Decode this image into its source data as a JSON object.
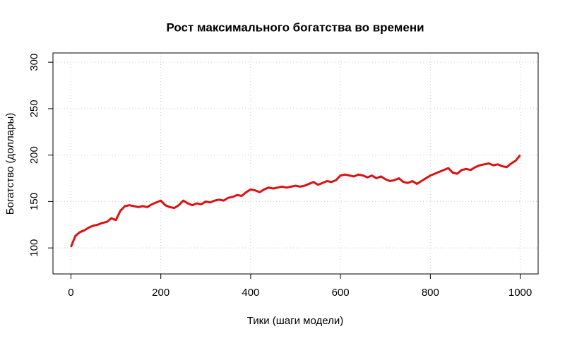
{
  "chart_data": {
    "type": "line",
    "title": "Рост максимального богатства во времени",
    "xlabel": "Тики (шаги модели)",
    "ylabel": "Богатство (доллары)",
    "color": "#dd1111",
    "grid": true,
    "xlim": [
      -40,
      1040
    ],
    "xticks": [
      0,
      200,
      400,
      600,
      800,
      1000
    ],
    "ylim": [
      72,
      310
    ],
    "yticks": [
      100,
      150,
      200,
      250,
      300
    ],
    "x": [
      0,
      10,
      20,
      30,
      40,
      50,
      60,
      70,
      80,
      90,
      100,
      110,
      120,
      130,
      140,
      150,
      160,
      170,
      180,
      190,
      200,
      210,
      220,
      230,
      240,
      250,
      260,
      270,
      280,
      290,
      300,
      310,
      320,
      330,
      340,
      350,
      360,
      370,
      380,
      390,
      400,
      410,
      420,
      430,
      440,
      450,
      460,
      470,
      480,
      490,
      500,
      510,
      520,
      530,
      540,
      550,
      560,
      570,
      580,
      590,
      600,
      610,
      620,
      630,
      640,
      650,
      660,
      670,
      680,
      690,
      700,
      710,
      720,
      730,
      740,
      750,
      760,
      770,
      780,
      790,
      800,
      810,
      820,
      830,
      840,
      850,
      860,
      870,
      880,
      890,
      900,
      910,
      920,
      930,
      940,
      950,
      960,
      970,
      980,
      990,
      1000
    ],
    "values": [
      101,
      113,
      117,
      119,
      122,
      124,
      125,
      127,
      128,
      132,
      130,
      140,
      145,
      146,
      145,
      144,
      145,
      144,
      147,
      149,
      151,
      146,
      144,
      143,
      146,
      151,
      148,
      146,
      148,
      147,
      150,
      149,
      151,
      152,
      151,
      154,
      155,
      157,
      156,
      160,
      163,
      162,
      160,
      163,
      165,
      164,
      165,
      166,
      165,
      166,
      167,
      166,
      167,
      169,
      171,
      168,
      170,
      172,
      171,
      173,
      178,
      179,
      178,
      177,
      179,
      178,
      176,
      178,
      175,
      177,
      174,
      172,
      173,
      175,
      171,
      170,
      172,
      169,
      172,
      175,
      178,
      180,
      182,
      184,
      186,
      181,
      180,
      184,
      185,
      184,
      187,
      189,
      190,
      191,
      189,
      190,
      188,
      187,
      191,
      194,
      200
    ]
  }
}
